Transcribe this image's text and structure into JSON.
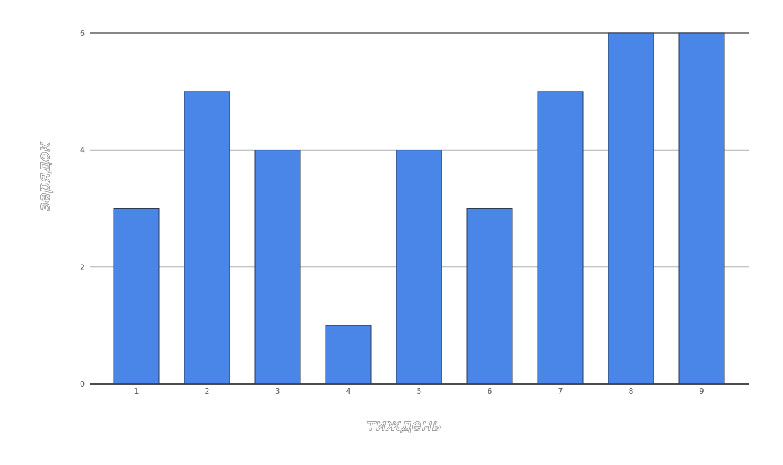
{
  "chart_data": {
    "type": "bar",
    "categories": [
      "1",
      "2",
      "3",
      "4",
      "5",
      "6",
      "7",
      "8",
      "9"
    ],
    "series": [
      {
        "values": [
          3,
          5,
          4,
          1,
          4,
          3,
          5,
          6,
          6
        ]
      }
    ],
    "xlabel": "тиждень",
    "ylabel": "зарядок",
    "ylim": [
      0,
      6
    ],
    "yticks": [
      "0",
      "2",
      "4",
      "6"
    ],
    "grid": true,
    "bar_color": "#4a86e8",
    "grid_color": "#5f5f5f",
    "text_color": "#555555"
  }
}
